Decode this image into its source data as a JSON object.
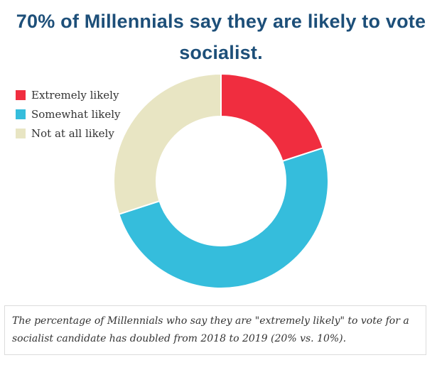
{
  "chart_data": {
    "type": "pie",
    "title": "70% of Millennials say they are likely to vote socialist.",
    "donut": true,
    "categories": [
      "Extremely likely",
      "Somewhat likely",
      "Not at all likely"
    ],
    "values": [
      20,
      50,
      30
    ],
    "colors": [
      "#f02d3f",
      "#35bddc",
      "#e8e5c3"
    ],
    "legend_position": "top-left"
  },
  "caption": "The percentage of Millennials who say they are \"extremely likely\" to vote for a socialist candidate has doubled from 2018 to 2019 (20% vs. 10%)."
}
